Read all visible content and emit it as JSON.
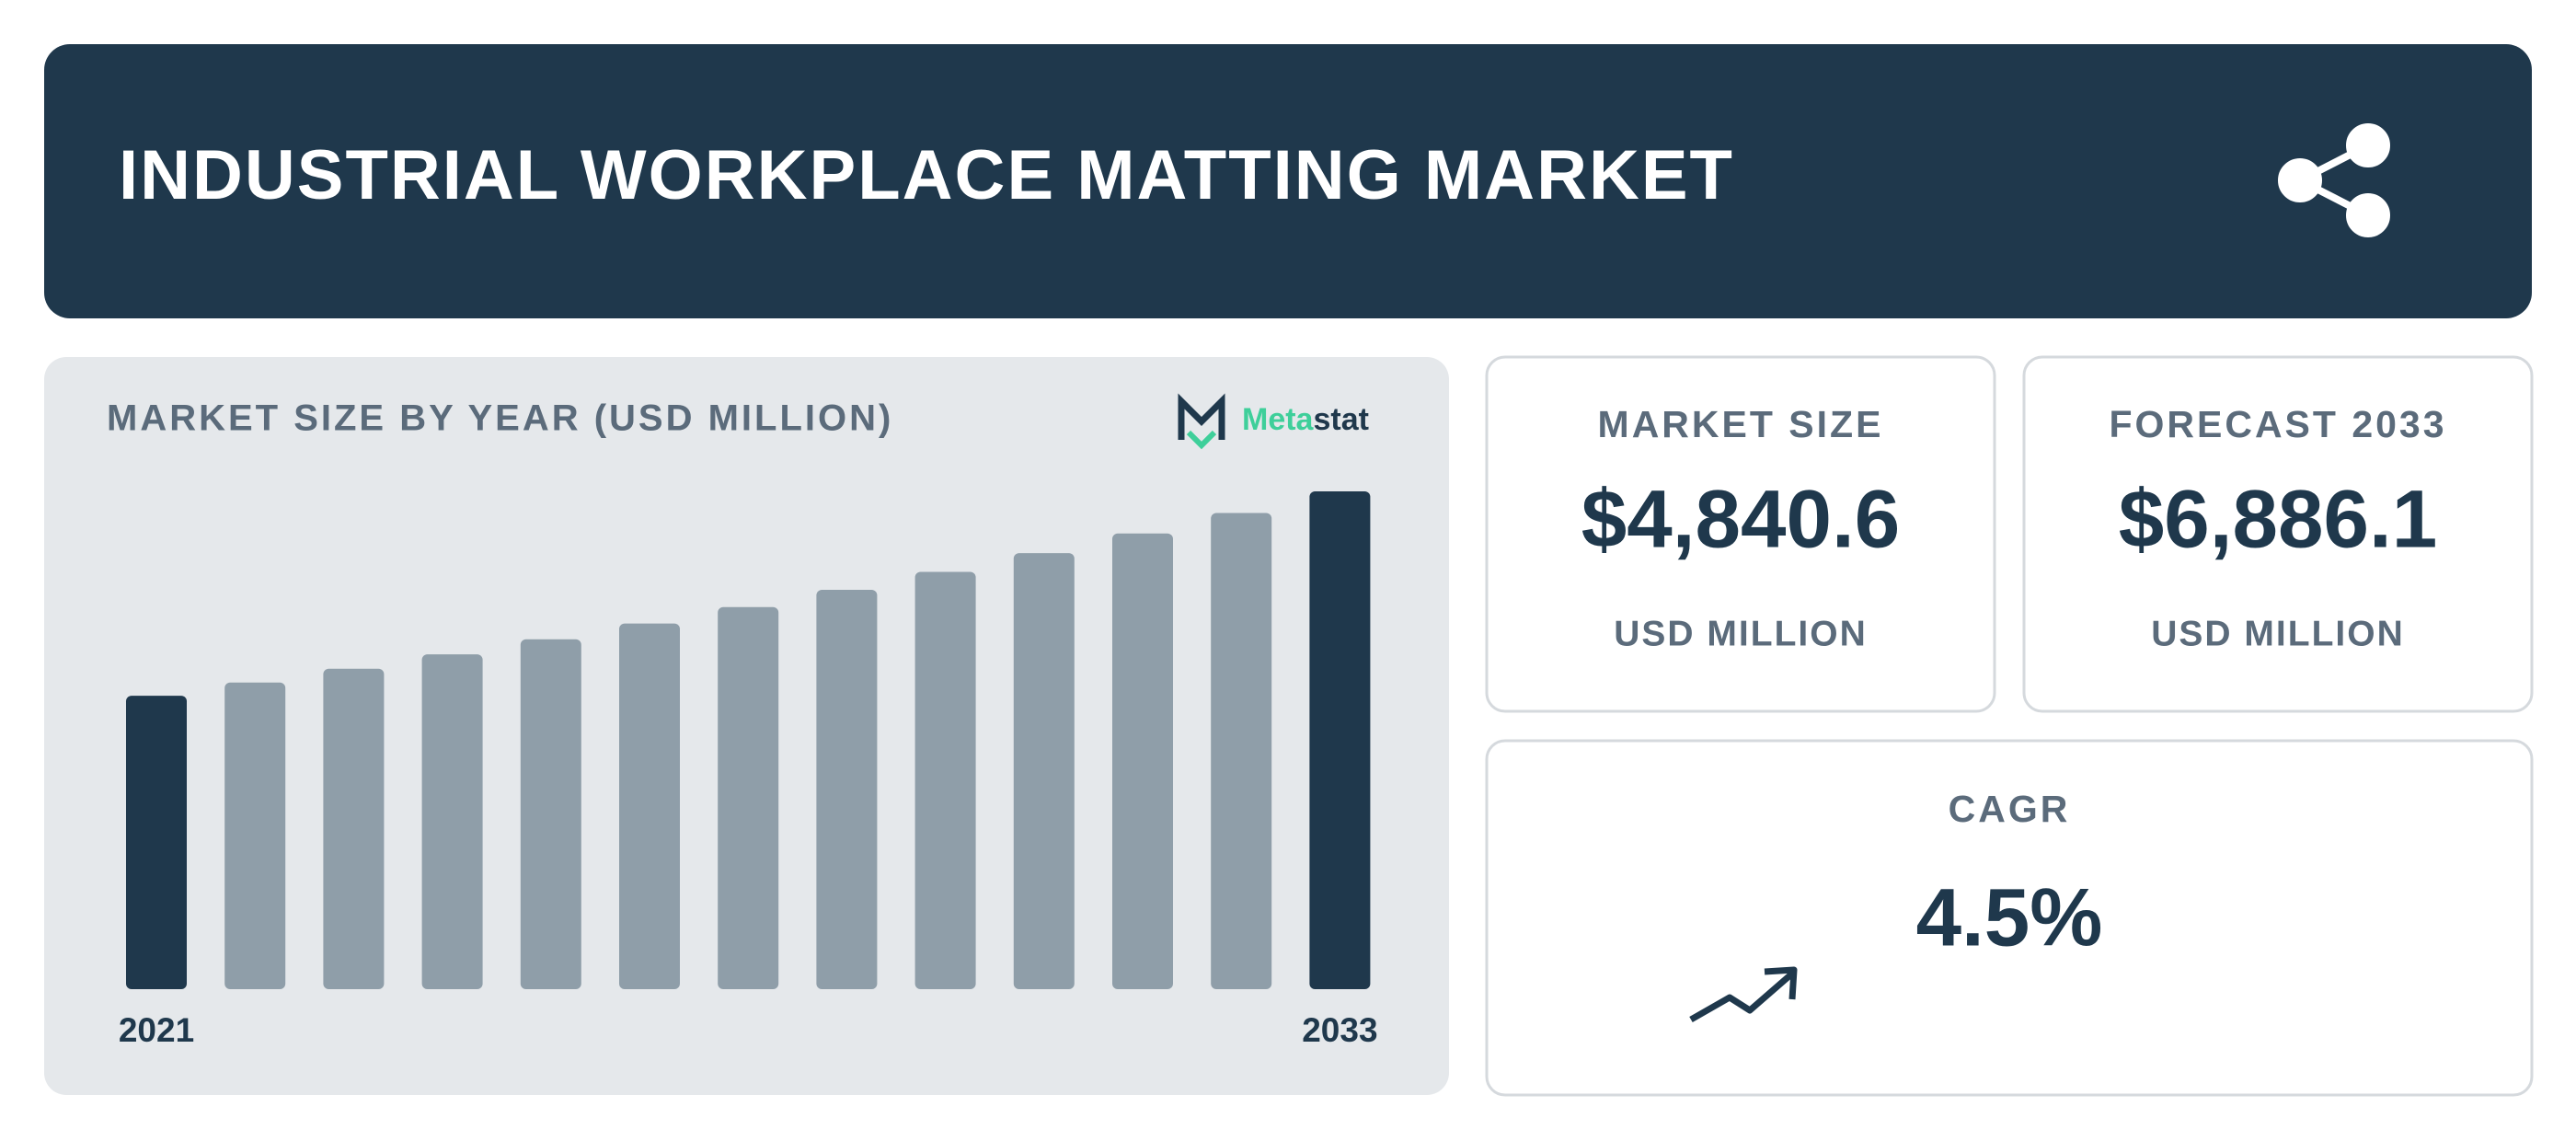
{
  "header": {
    "title": "INDUSTRIAL WORKPLACE MATTING MARKET"
  },
  "chart_data": {
    "type": "bar",
    "title": "MARKET SIZE BY YEAR (USD MILLION)",
    "brand": [
      "Meta",
      "stat"
    ],
    "categories": [
      "2021",
      null,
      null,
      null,
      null,
      null,
      null,
      null,
      null,
      null,
      null,
      null,
      "2033"
    ],
    "values": [
      4059.2,
      4241.8,
      4432.7,
      4632.2,
      4840.6,
      5058.4,
      5286.0,
      5523.9,
      5772.5,
      6032.3,
      6303.7,
      6587.4,
      6886.1
    ],
    "colors": [
      "#1f384c",
      "#8f9ea9",
      "#8f9ea9",
      "#8f9ea9",
      "#8f9ea9",
      "#8f9ea9",
      "#8f9ea9",
      "#8f9ea9",
      "#8f9ea9",
      "#8f9ea9",
      "#8f9ea9",
      "#8f9ea9",
      "#1f384c"
    ]
  },
  "cards": [
    {
      "label": "MARKET SIZE",
      "value": "$4,840.6",
      "unit": "USD MILLION"
    },
    {
      "label": "FORECAST 2033",
      "value": "$6,886.1",
      "unit": "USD MILLION"
    }
  ],
  "cagr": {
    "label": "CAGR",
    "value": "4.5%"
  }
}
